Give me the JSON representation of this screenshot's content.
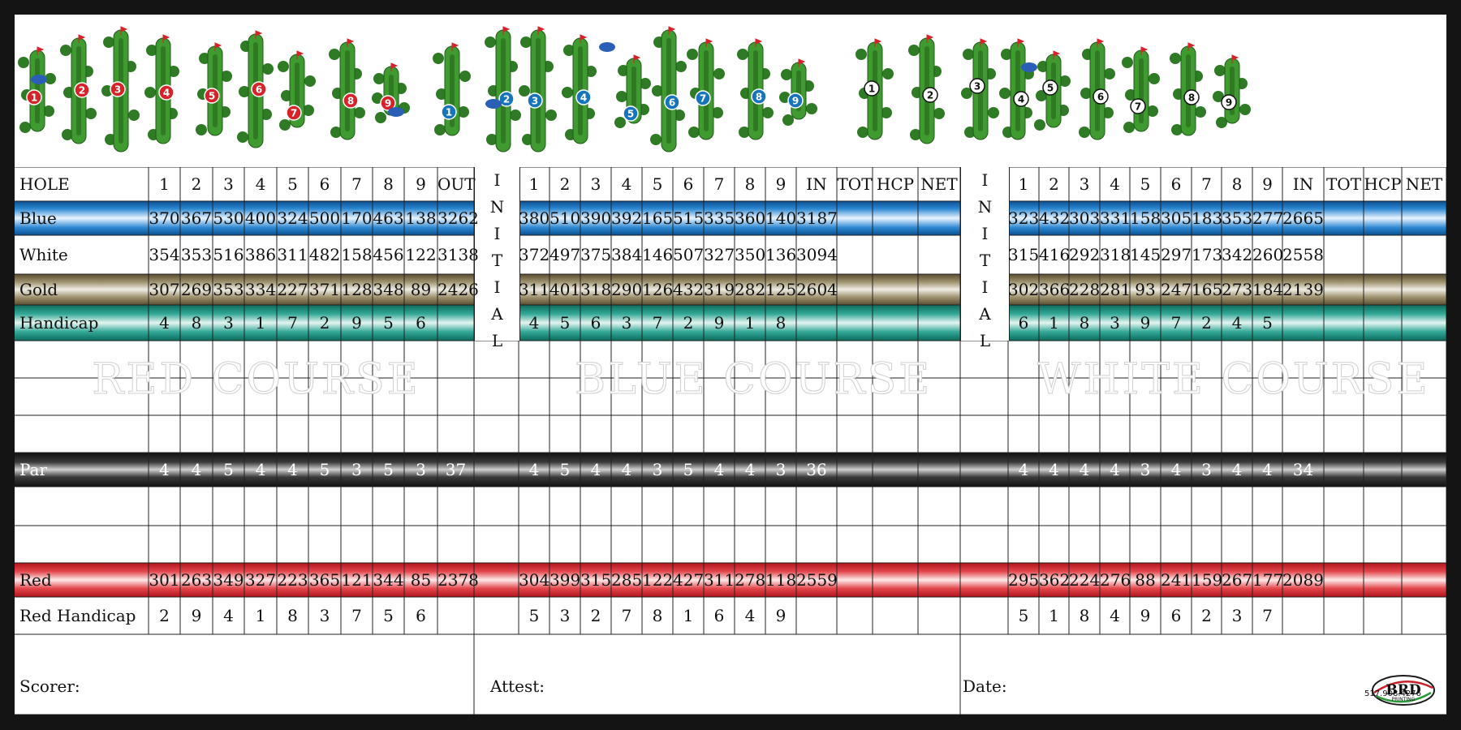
{
  "header": {
    "hole_label": "HOLE"
  },
  "courses": [
    {
      "name": "RED COURSE",
      "badge_style": "red",
      "hole_numbers": [
        "1",
        "2",
        "3",
        "4",
        "5",
        "6",
        "7",
        "8",
        "9"
      ],
      "total_col": "OUT",
      "extra_cols": [],
      "rows": {
        "blue": [
          "370",
          "367",
          "530",
          "400",
          "324",
          "500",
          "170",
          "463",
          "138",
          "3262"
        ],
        "white": [
          "354",
          "353",
          "516",
          "386",
          "311",
          "482",
          "158",
          "456",
          "122",
          "3138"
        ],
        "gold": [
          "307",
          "269",
          "353",
          "334",
          "227",
          "371",
          "128",
          "348",
          "89",
          "2426"
        ],
        "handicap": [
          "4",
          "8",
          "3",
          "1",
          "7",
          "2",
          "9",
          "5",
          "6",
          ""
        ],
        "par": [
          "4",
          "4",
          "5",
          "4",
          "4",
          "5",
          "3",
          "5",
          "3",
          "37"
        ],
        "red": [
          "301",
          "263",
          "349",
          "327",
          "223",
          "365",
          "121",
          "344",
          "85",
          "2378"
        ],
        "red_handicap": [
          "2",
          "9",
          "4",
          "1",
          "8",
          "3",
          "7",
          "5",
          "6",
          ""
        ]
      }
    },
    {
      "name": "BLUE COURSE",
      "badge_style": "blue",
      "hole_numbers": [
        "1",
        "2",
        "3",
        "4",
        "5",
        "6",
        "7",
        "8",
        "9"
      ],
      "total_col": "IN",
      "extra_cols": [
        "TOT",
        "HCP",
        "NET"
      ],
      "rows": {
        "blue": [
          "380",
          "510",
          "390",
          "392",
          "165",
          "515",
          "335",
          "360",
          "140",
          "3187"
        ],
        "white": [
          "372",
          "497",
          "375",
          "384",
          "146",
          "507",
          "327",
          "350",
          "136",
          "3094"
        ],
        "gold": [
          "311",
          "401",
          "318",
          "290",
          "126",
          "432",
          "319",
          "282",
          "125",
          "2604"
        ],
        "handicap": [
          "4",
          "5",
          "6",
          "3",
          "7",
          "2",
          "9",
          "1",
          "8",
          ""
        ],
        "par": [
          "4",
          "5",
          "4",
          "4",
          "3",
          "5",
          "4",
          "4",
          "3",
          "36"
        ],
        "red": [
          "304",
          "399",
          "315",
          "285",
          "122",
          "427",
          "311",
          "278",
          "118",
          "2559"
        ],
        "red_handicap": [
          "5",
          "3",
          "2",
          "7",
          "8",
          "1",
          "6",
          "4",
          "9",
          ""
        ]
      }
    },
    {
      "name": "WHITE COURSE",
      "badge_style": "white",
      "hole_numbers": [
        "1",
        "2",
        "3",
        "4",
        "5",
        "6",
        "7",
        "8",
        "9"
      ],
      "total_col": "IN",
      "extra_cols": [
        "TOT",
        "HCP",
        "NET"
      ],
      "rows": {
        "blue": [
          "323",
          "432",
          "303",
          "331",
          "158",
          "305",
          "183",
          "353",
          "277",
          "2665"
        ],
        "white": [
          "315",
          "416",
          "292",
          "318",
          "145",
          "297",
          "173",
          "342",
          "260",
          "2558"
        ],
        "gold": [
          "302",
          "366",
          "228",
          "281",
          "93",
          "247",
          "165",
          "273",
          "184",
          "2139"
        ],
        "handicap": [
          "6",
          "1",
          "8",
          "3",
          "9",
          "7",
          "2",
          "4",
          "5",
          ""
        ],
        "par": [
          "4",
          "4",
          "4",
          "4",
          "3",
          "4",
          "3",
          "4",
          "4",
          "34"
        ],
        "red": [
          "295",
          "362",
          "224",
          "276",
          "88",
          "241",
          "159",
          "267",
          "177",
          "2089"
        ],
        "red_handicap": [
          "5",
          "1",
          "8",
          "4",
          "9",
          "6",
          "2",
          "3",
          "7",
          ""
        ]
      }
    }
  ],
  "row_labels": {
    "blue": "Blue",
    "white": "White",
    "gold": "Gold",
    "handicap": "Handicap",
    "par": "Par",
    "red": "Red",
    "red_handicap": "Red Handicap"
  },
  "initial_letters": [
    "I",
    "N",
    "I",
    "T",
    "I",
    "A",
    "L"
  ],
  "signature": {
    "scorer": "Scorer:",
    "attest": "Attest:",
    "date": "Date:"
  },
  "logo": {
    "text": "BRD",
    "sub": "PRINTING",
    "phone": "517.908.4276"
  },
  "colors": {
    "red_badge": "#d6232a",
    "blue_badge": "#1574bb",
    "white_badge": "#ffffff",
    "fairway": "#3f9a2f",
    "trees": "#2e7a25",
    "water": "#2a5fb5"
  }
}
